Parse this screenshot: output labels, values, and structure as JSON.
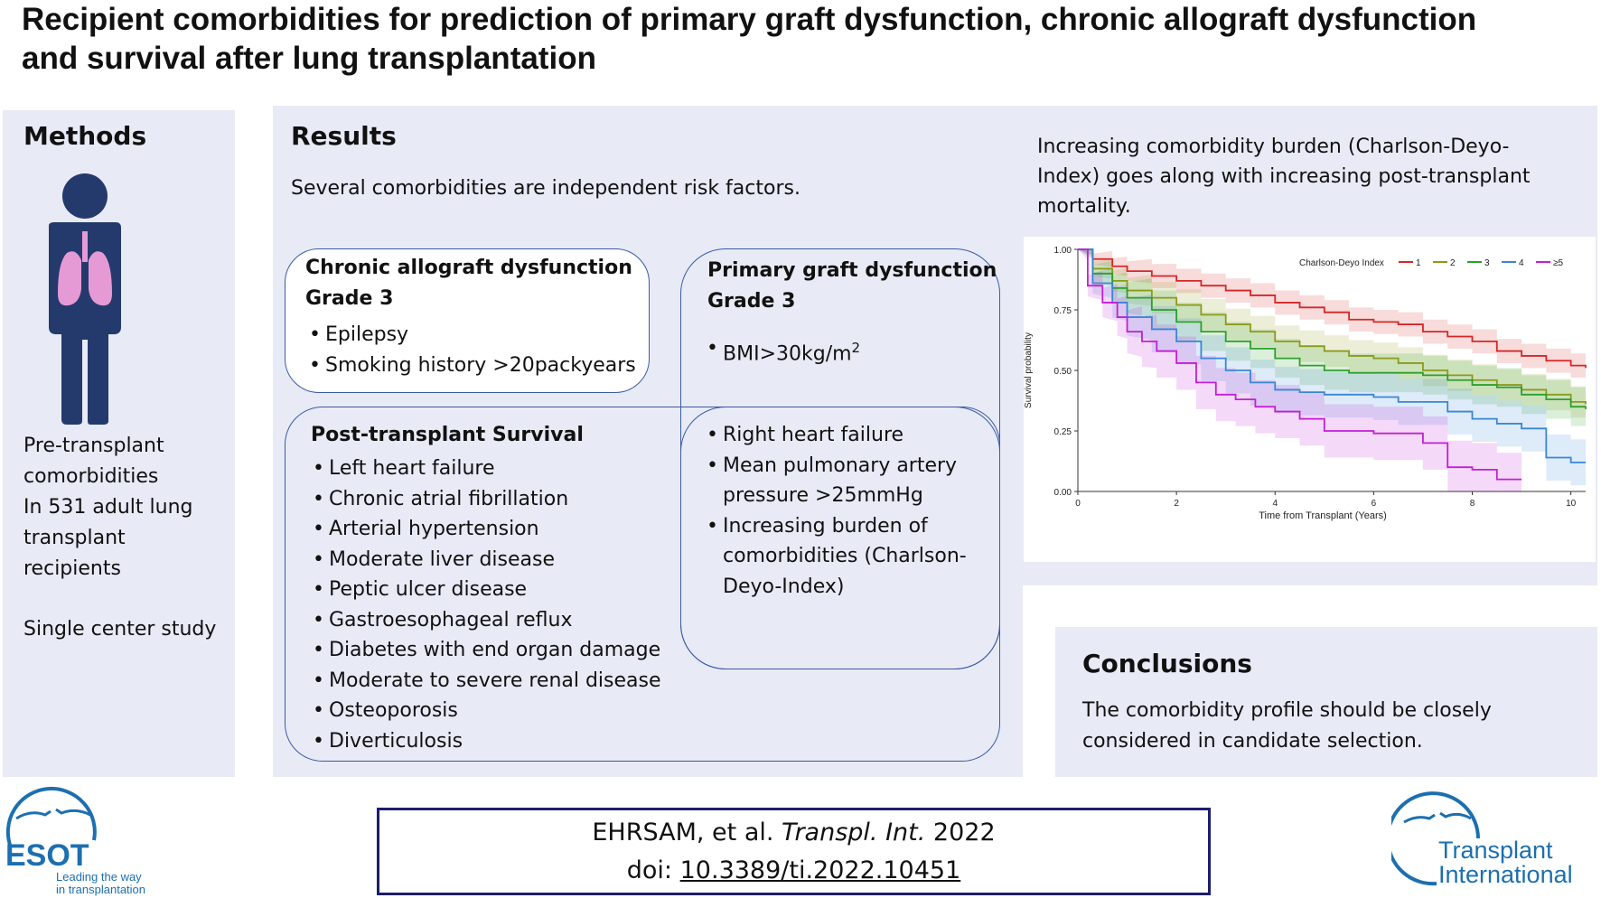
{
  "title": {
    "line1": "Recipient comorbidities for prediction of primary graft dysfunction, chronic allograft dysfunction",
    "line2": "and survival after lung transplantation"
  },
  "methods": {
    "heading": "Methods",
    "text_lines": [
      "Pre-transplant",
      "comorbidities",
      "In 531 adult lung",
      "transplant",
      "recipients"
    ],
    "study_type": "Single center study"
  },
  "results": {
    "heading": "Results",
    "intro": "Several comorbidities are independent risk factors.",
    "cad": {
      "title_line1": "Chronic allograft dysfunction",
      "title_line2": "Grade 3",
      "items": [
        "Epilepsy",
        "Smoking history >20packyears"
      ]
    },
    "pgd": {
      "title_line1": "Primary graft dysfunction",
      "title_line2": "Grade 3",
      "item_prefix": "BMI>30kg/m",
      "item_sup": "2"
    },
    "survival": {
      "title": "Post-transplant Survival",
      "items": [
        "Left heart failure",
        "Chronic atrial fibrillation",
        "Arterial hypertension",
        "Moderate liver disease",
        "Peptic ulcer disease",
        "Gastroesophageal reflux",
        "Diabetes with end organ damage",
        "Moderate to severe renal disease",
        "Osteoporosis",
        "Diverticulosis"
      ]
    },
    "overlap": {
      "items": [
        "Right heart failure",
        "Mean pulmonary artery pressure >25mmHg",
        "Increasing burden of comorbidities (Charlson-Deyo-Index)"
      ]
    }
  },
  "chart_caption": "Increasing comorbidity burden (Charlson-Deyo-Index) goes along with increasing post-transplant mortality.",
  "chart_data": {
    "type": "line",
    "title": "",
    "xlabel": "Time from Transplant (Years)",
    "ylabel": "Survival probability",
    "xlim": [
      0,
      10.3
    ],
    "ylim": [
      0,
      1
    ],
    "xticks": [
      0,
      2,
      4,
      6,
      8,
      10
    ],
    "yticks": [
      "0.00",
      "0.25",
      "0.50",
      "0.75",
      "1.00"
    ],
    "legend_title": "Charlson-Deyo Index",
    "legend_position": "top-right",
    "series": [
      {
        "name": "1",
        "color": "#d62728",
        "x": [
          0,
          0.3,
          0.7,
          1,
          1.5,
          2,
          2.5,
          3,
          3.5,
          4,
          4.5,
          5,
          5.5,
          6,
          6.5,
          7,
          7.5,
          8,
          8.5,
          9,
          9.5,
          10,
          10.3
        ],
        "y": [
          1,
          0.96,
          0.93,
          0.91,
          0.89,
          0.87,
          0.85,
          0.83,
          0.81,
          0.78,
          0.76,
          0.74,
          0.71,
          0.7,
          0.69,
          0.66,
          0.64,
          0.62,
          0.58,
          0.56,
          0.54,
          0.52,
          0.51
        ]
      },
      {
        "name": "2",
        "color": "#8c9a1a",
        "x": [
          0,
          0.3,
          0.7,
          1,
          1.5,
          2,
          2.5,
          3,
          3.5,
          4,
          4.5,
          5,
          5.5,
          6,
          6.5,
          7,
          7.5,
          8,
          8.5,
          9,
          9.5,
          10,
          10.3
        ],
        "y": [
          1,
          0.92,
          0.87,
          0.83,
          0.8,
          0.77,
          0.73,
          0.69,
          0.66,
          0.62,
          0.6,
          0.58,
          0.56,
          0.55,
          0.53,
          0.5,
          0.48,
          0.46,
          0.44,
          0.42,
          0.4,
          0.37,
          0.36
        ]
      },
      {
        "name": "3",
        "color": "#2ca02c",
        "x": [
          0,
          0.3,
          0.7,
          1,
          1.5,
          2,
          2.5,
          3,
          3.5,
          4,
          4.5,
          5,
          5.5,
          6,
          6.5,
          7,
          7.5,
          8,
          8.5,
          9,
          9.5,
          10,
          10.3
        ],
        "y": [
          1,
          0.9,
          0.84,
          0.8,
          0.75,
          0.7,
          0.66,
          0.62,
          0.59,
          0.55,
          0.52,
          0.5,
          0.49,
          0.49,
          0.49,
          0.48,
          0.46,
          0.44,
          0.43,
          0.4,
          0.38,
          0.35,
          0.34
        ]
      },
      {
        "name": "4",
        "color": "#3a86d6",
        "x": [
          0,
          0.3,
          0.7,
          1,
          1.5,
          2,
          2.5,
          3,
          3.5,
          4,
          4.5,
          5,
          5.5,
          6,
          6.5,
          7,
          7.5,
          8,
          8.5,
          9,
          9.5,
          10,
          10.3
        ],
        "y": [
          1,
          0.86,
          0.78,
          0.72,
          0.67,
          0.62,
          0.55,
          0.5,
          0.45,
          0.42,
          0.41,
          0.4,
          0.4,
          0.39,
          0.37,
          0.37,
          0.33,
          0.3,
          0.28,
          0.26,
          0.14,
          0.12,
          0.12
        ]
      },
      {
        "name": "≥5",
        "color": "#c21ed6",
        "x": [
          0,
          0.2,
          0.5,
          0.8,
          1,
          1.3,
          1.6,
          2,
          2.4,
          2.8,
          3.2,
          3.6,
          4,
          4.5,
          5,
          5.5,
          6,
          6.5,
          7,
          7.5,
          8,
          8.5,
          9
        ],
        "y": [
          1,
          0.85,
          0.78,
          0.72,
          0.66,
          0.62,
          0.58,
          0.53,
          0.45,
          0.4,
          0.38,
          0.35,
          0.33,
          0.3,
          0.25,
          0.25,
          0.24,
          0.24,
          0.2,
          0.1,
          0.09,
          0.05,
          0.05
        ]
      }
    ]
  },
  "conclusions": {
    "heading": "Conclusions",
    "text_line1": "The comorbidity profile should be closely",
    "text_line2": "considered in candidate selection."
  },
  "citation": {
    "authors": "EHRSAM, et al.",
    "journal": "Transpl. Int.",
    "year": "2022",
    "doi_label": "doi:",
    "doi": "10.3389/ti.2022.10451"
  },
  "logos": {
    "esot_name": "ESOT",
    "esot_tag_line1": "Leading the way",
    "esot_tag_line2": "in transplantation",
    "ti_line1": "Transplant",
    "ti_line2": "International",
    "brand_color": "#1c6fb0"
  },
  "colors": {
    "panel_bg": "#e8eaf6",
    "box_border": "#3b5ba5",
    "person": "#243a6c",
    "lungs": "#e59ad6",
    "citation_border": "#1d1d6e"
  }
}
